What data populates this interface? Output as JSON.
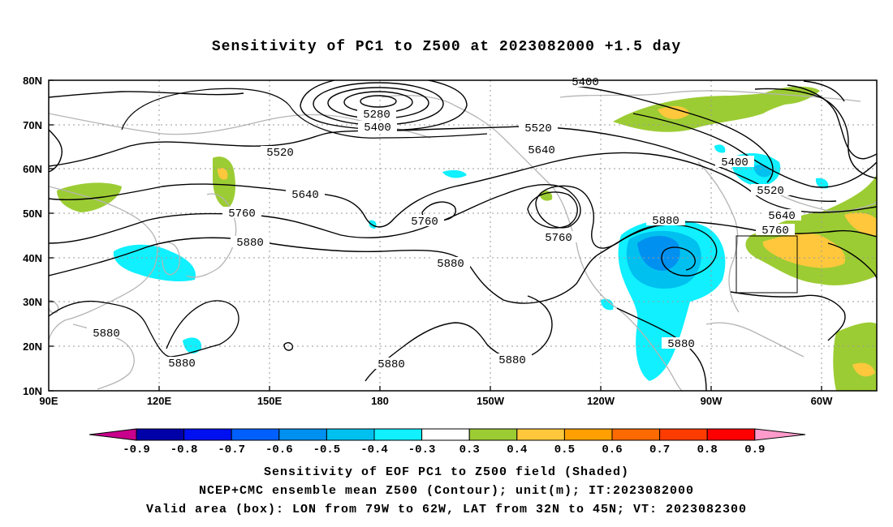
{
  "title": "Sensitivity of PC1 to Z500 at 2023082000 +1.5 day",
  "lat_ticks": [
    "80N",
    "70N",
    "60N",
    "50N",
    "40N",
    "30N",
    "20N",
    "10N"
  ],
  "lon_ticks": [
    "90E",
    "120E",
    "150E",
    "180",
    "150W",
    "120W",
    "90W",
    "60W"
  ],
  "contour_labels": [
    "5400",
    "5280",
    "5400",
    "5520",
    "5520",
    "5640",
    "5640",
    "5760",
    "5760",
    "5760",
    "5880",
    "5880",
    "5880",
    "5880",
    "5880",
    "5880",
    "5400",
    "5520",
    "5640",
    "5760",
    "5880"
  ],
  "colorbar": {
    "labels": [
      "-0.9",
      "-0.8",
      "-0.7",
      "-0.6",
      "-0.5",
      "-0.4",
      "-0.3",
      "0.3",
      "0.4",
      "0.5",
      "0.6",
      "0.7",
      "0.8",
      "0.9"
    ],
    "colors": [
      "#0000a8",
      "#0010f0",
      "#0060ff",
      "#0090f0",
      "#00c0f0",
      "#10f0ff",
      "#ffffff",
      "#9ccc33",
      "#ffc83c",
      "#ffa000",
      "#ff6a00",
      "#ff3c00",
      "#ff0000"
    ],
    "low_end_color": "#c8008c",
    "high_end_color": "#ff9ccc"
  },
  "valid_box": {
    "lon_from": "79W",
    "lon_to": "62W",
    "lat_from": "32N",
    "lat_to": "45N"
  },
  "captions": [
    "Sensitivity of EOF PC1 to Z500 field (Shaded)",
    "NCEP+CMC ensemble mean Z500 (Contour); unit(m); IT:2023082000",
    "Valid area (box): LON from 79W to 62W, LAT from 32N to 45N; VT: 2023082300"
  ]
}
